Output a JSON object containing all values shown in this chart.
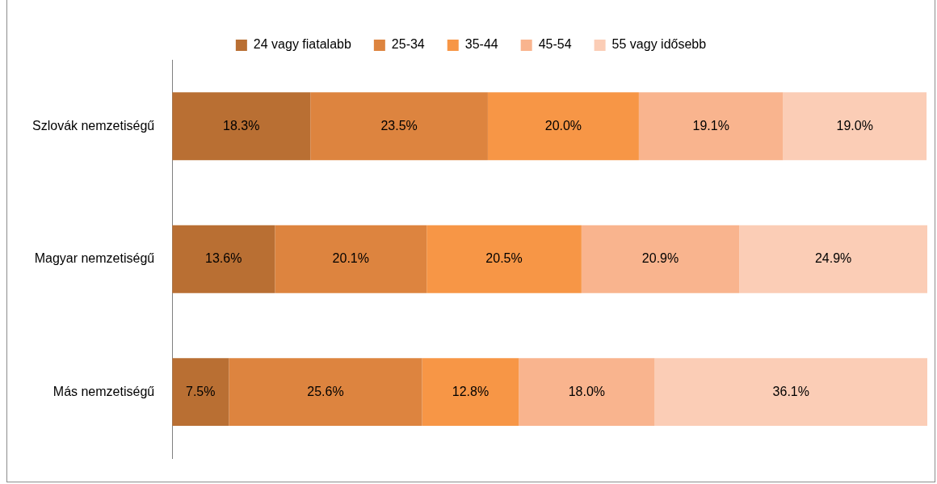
{
  "chart_data": {
    "type": "bar",
    "orientation": "horizontal",
    "stacked": true,
    "categories": [
      "Szlovák nemzetiségű",
      "Magyar nemzetiségű",
      "Más nemzetiségű"
    ],
    "series": [
      {
        "name": "24 vagy fiatalabb",
        "color": "#b96f33",
        "values": [
          18.3,
          13.6,
          7.5
        ],
        "value_labels": [
          "18.3%",
          "13.6%",
          "7.5%"
        ]
      },
      {
        "name": "25-34",
        "color": "#dd843f",
        "values": [
          23.5,
          20.1,
          25.6
        ],
        "value_labels": [
          "23.5%",
          "20.1%",
          "25.6%"
        ]
      },
      {
        "name": "35-44",
        "color": "#f79646",
        "values": [
          20.0,
          20.5,
          12.8
        ],
        "value_labels": [
          "20.0%",
          "20.5%",
          "12.8%"
        ]
      },
      {
        "name": "45-54",
        "color": "#f9b48e",
        "values": [
          19.1,
          20.9,
          18.0
        ],
        "value_labels": [
          "19.1%",
          "20.9%",
          "18.0%"
        ]
      },
      {
        "name": "55 vagy idősebb",
        "color": "#fbcdb6",
        "values": [
          19.0,
          24.9,
          36.1
        ],
        "value_labels": [
          "19.0%",
          "24.9%",
          "36.1%"
        ]
      }
    ],
    "xlim": [
      0,
      100
    ],
    "tick_labels": "y",
    "grid": false,
    "legend": "top"
  }
}
